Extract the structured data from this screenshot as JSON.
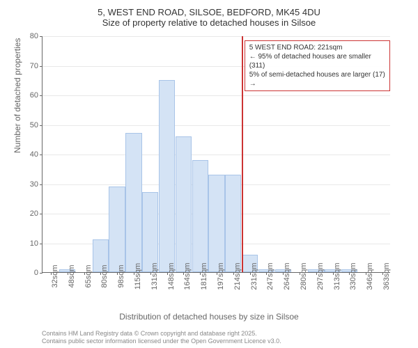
{
  "title": {
    "line1": "5, WEST END ROAD, SILSOE, BEDFORD, MK45 4DU",
    "line2": "Size of property relative to detached houses in Silsoe"
  },
  "yaxis": {
    "label": "Number of detached properties",
    "ticks": [
      0,
      10,
      20,
      30,
      40,
      50,
      60,
      70,
      80
    ],
    "max": 80
  },
  "xaxis": {
    "label": "Distribution of detached houses by size in Silsoe",
    "categories": [
      "32sqm",
      "48sqm",
      "65sqm",
      "80sqm",
      "98sqm",
      "115sqm",
      "131sqm",
      "148sqm",
      "164sqm",
      "181sqm",
      "197sqm",
      "214sqm",
      "231sqm",
      "247sqm",
      "264sqm",
      "280sqm",
      "297sqm",
      "313sqm",
      "330sqm",
      "346sqm",
      "363sqm"
    ]
  },
  "bars": {
    "values": [
      0,
      1,
      0,
      11,
      29,
      47,
      27,
      65,
      46,
      38,
      33,
      33,
      6,
      1,
      1,
      0,
      1,
      1,
      1,
      0,
      0
    ],
    "fill": "#d4e3f5",
    "stroke": "#a8c4e8"
  },
  "reference": {
    "position_index": 12,
    "color": "#cc3333",
    "callout": {
      "line1": "5 WEST END ROAD: 221sqm",
      "line2": "← 95% of detached houses are smaller (311)",
      "line3": "5% of semi-detached houses are larger (17) →"
    }
  },
  "footnote": {
    "line1": "Contains HM Land Registry data © Crown copyright and database right 2025.",
    "line2": "Contains public sector information licensed under the Open Government Licence v3.0."
  },
  "colors": {
    "background": "#ffffff",
    "grid": "#e8e8e8",
    "axis": "#666666",
    "text": "#666666"
  }
}
